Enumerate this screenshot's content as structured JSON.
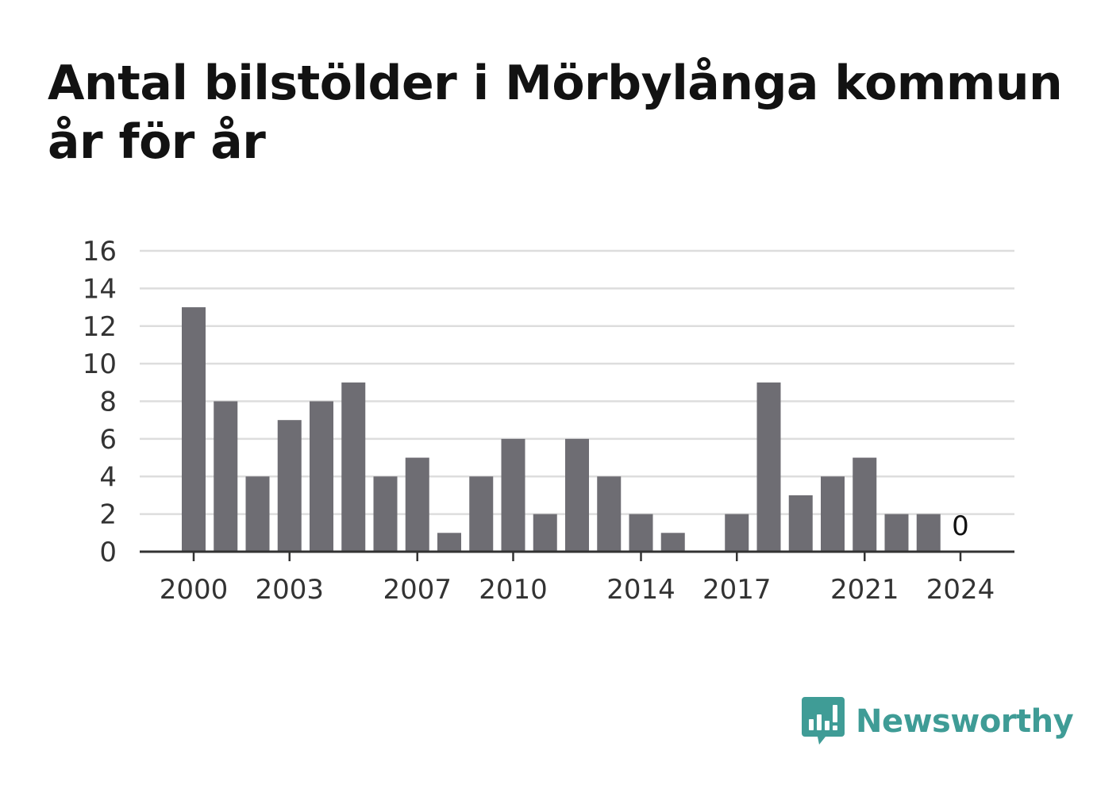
{
  "title": "Antal bilstölder i Mörbylånga kommun år för år",
  "brand": {
    "name": "Newsworthy",
    "logo_icon": "bar-chart-speech-bubble-icon",
    "color": "#3f9c96"
  },
  "colors": {
    "bar": "#6e6d73",
    "grid": "#dddddd",
    "axis": "#333333",
    "text": "#333333"
  },
  "chart_data": {
    "type": "bar",
    "title": "Antal bilstölder i Mörbylånga kommun år för år",
    "xlabel": "",
    "ylabel": "",
    "categories": [
      2000,
      2001,
      2002,
      2003,
      2004,
      2005,
      2006,
      2007,
      2008,
      2009,
      2010,
      2011,
      2012,
      2013,
      2014,
      2015,
      2016,
      2017,
      2018,
      2019,
      2020,
      2021,
      2022,
      2023,
      2024
    ],
    "values": [
      13,
      8,
      4,
      7,
      8,
      9,
      4,
      5,
      1,
      4,
      6,
      2,
      6,
      4,
      2,
      1,
      0,
      2,
      9,
      3,
      4,
      5,
      2,
      2,
      0
    ],
    "x_tick_labels": [
      "2000",
      "2003",
      "2007",
      "2010",
      "2014",
      "2017",
      "2021",
      "2024"
    ],
    "y_ticks": [
      0,
      2,
      4,
      6,
      8,
      10,
      12,
      14,
      16
    ],
    "ylim": [
      0,
      16
    ],
    "data_labels": [
      {
        "category": 2024,
        "text": "0"
      }
    ],
    "grid": true,
    "legend": "none"
  }
}
